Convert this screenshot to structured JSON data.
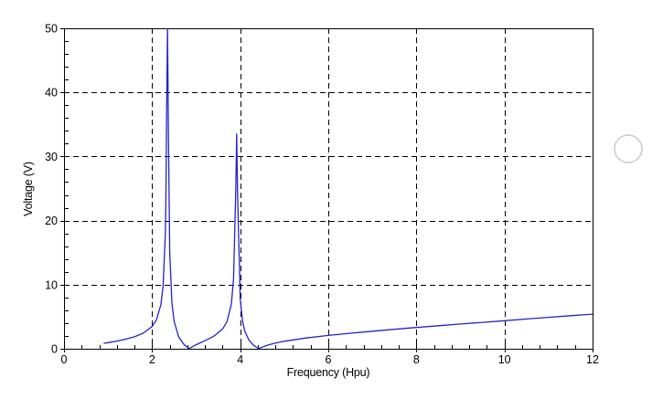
{
  "chart_data": {
    "type": "line",
    "title": "",
    "xlabel": "Frequency (Hpu)",
    "ylabel": "Voltage (V)",
    "xlim": [
      0,
      12
    ],
    "ylim": [
      0,
      50
    ],
    "x_major_ticks": [
      0,
      2,
      4,
      6,
      8,
      10,
      12
    ],
    "x_minor_step": 0.4,
    "y_major_ticks": [
      0,
      10,
      20,
      30,
      40,
      50
    ],
    "y_minor_step": 2,
    "grid": "dashed lines at major ticks",
    "legend": "none",
    "colors": {
      "line": "#2323cd",
      "axis": "#000000",
      "grid": "#000000",
      "background": "#ffffff",
      "side_circle": "#c9c9d2"
    },
    "peaks": [
      {
        "x": 2.35,
        "y": 50,
        "note": "resonance peak clipped at axis top"
      },
      {
        "x": 3.92,
        "y": 33.5,
        "note": "second resonance peak"
      }
    ],
    "series": [
      {
        "name": "Voltage",
        "points": [
          [
            0.9,
            0.85
          ],
          [
            1.0,
            0.96
          ],
          [
            1.2,
            1.2
          ],
          [
            1.4,
            1.49
          ],
          [
            1.6,
            1.87
          ],
          [
            1.8,
            2.43
          ],
          [
            2.0,
            3.47
          ],
          [
            2.1,
            4.52
          ],
          [
            2.2,
            6.9
          ],
          [
            2.25,
            9.9
          ],
          [
            2.3,
            17.9
          ],
          [
            2.31,
            22.0
          ],
          [
            2.32,
            27.4
          ],
          [
            2.33,
            36.7
          ],
          [
            2.35,
            50
          ],
          [
            2.37,
            33.2
          ],
          [
            2.4,
            15.1
          ],
          [
            2.45,
            7.1
          ],
          [
            2.5,
            4.3
          ],
          [
            2.6,
            1.93
          ],
          [
            2.7,
            0.86
          ],
          [
            2.75,
            0.5
          ],
          [
            2.84,
            0.02
          ],
          [
            2.95,
            0.45
          ],
          [
            3.0,
            0.63
          ],
          [
            3.2,
            1.26
          ],
          [
            3.4,
            1.95
          ],
          [
            3.6,
            3.07
          ],
          [
            3.7,
            4.21
          ],
          [
            3.8,
            6.95
          ],
          [
            3.85,
            10.9
          ],
          [
            3.9,
            25.2
          ],
          [
            3.92,
            33.5
          ],
          [
            3.94,
            24.2
          ],
          [
            4.0,
            7.8
          ],
          [
            4.05,
            4.44
          ],
          [
            4.1,
            2.83
          ],
          [
            4.2,
            1.32
          ],
          [
            4.3,
            0.55
          ],
          [
            4.42,
            0.02
          ],
          [
            4.5,
            0.26
          ],
          [
            4.6,
            0.51
          ],
          [
            4.8,
            0.89
          ],
          [
            5.0,
            1.17
          ],
          [
            5.5,
            1.68
          ],
          [
            6.0,
            2.08
          ],
          [
            6.5,
            2.42
          ],
          [
            7.0,
            2.74
          ],
          [
            7.5,
            3.03
          ],
          [
            8.0,
            3.32
          ],
          [
            8.5,
            3.59
          ],
          [
            9.0,
            3.86
          ],
          [
            9.5,
            4.12
          ],
          [
            10.0,
            4.38
          ],
          [
            10.5,
            4.64
          ],
          [
            11.0,
            4.9
          ],
          [
            11.5,
            5.15
          ],
          [
            12.0,
            5.4
          ]
        ]
      }
    ]
  }
}
